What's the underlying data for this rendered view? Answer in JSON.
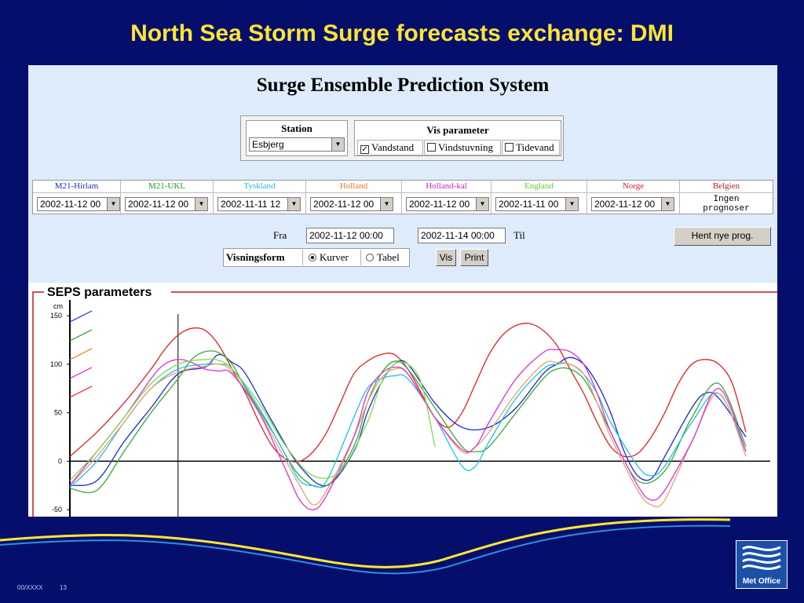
{
  "slide": {
    "title": "North Sea Storm Surge forecasts exchange: DMI",
    "footer_code": "00/XXXX",
    "page_number": "13",
    "logo_text": "Met Office"
  },
  "app": {
    "title": "Surge Ensemble Prediction System",
    "station": {
      "label": "Station",
      "value": "Esbjerg"
    },
    "vis_parameter": {
      "label": "Vis parameter",
      "options": [
        {
          "label": "Vandstand",
          "checked": true
        },
        {
          "label": "Vindstuvning",
          "checked": false
        },
        {
          "label": "Tidevand",
          "checked": false
        }
      ]
    },
    "models": [
      {
        "name": "M21-Hirlam",
        "color": "#1a2bd0",
        "date": "2002-11-12 00"
      },
      {
        "name": "M21-UKL",
        "color": "#1f9a1f",
        "date": "2002-11-12 00"
      },
      {
        "name": "Tyskland",
        "color": "#1fb9e0",
        "date": "2002-11-11 12"
      },
      {
        "name": "Holland",
        "color": "#e07a1f",
        "date": "2002-11-12 00"
      },
      {
        "name": "Holland-kal",
        "color": "#d01fc8",
        "date": "2002-11-12 00"
      },
      {
        "name": "England",
        "color": "#5ccf2f",
        "date": "2002-11-11 00"
      },
      {
        "name": "Norge",
        "color": "#e01f1f",
        "date": "2002-11-12 00"
      },
      {
        "name": "Belgien",
        "color": "#b02020",
        "note_line1": "Ingen",
        "note_line2": "prognoser"
      }
    ],
    "fra_label": "Fra",
    "fra_value": "2002-11-12 00:00",
    "til_value": "2002-11-14 00:00",
    "til_label": "Til",
    "hent_button": "Hent nye prog.",
    "visningsform": {
      "label": "Visningsform",
      "options": [
        {
          "label": "Kurver",
          "selected": true
        },
        {
          "label": "Tabel",
          "selected": false
        }
      ]
    },
    "vis_button": "Vis",
    "print_button": "Print"
  },
  "chart_data": {
    "type": "line",
    "title": "SEPS parameters",
    "ylabel": "cm",
    "ylim": [
      -55,
      155
    ],
    "yticks": [
      150,
      100,
      50,
      0,
      -50
    ],
    "series": [
      {
        "color": "#e02020",
        "x": [
          0,
          4,
          8,
          12,
          14,
          16,
          18,
          20,
          22,
          24,
          26,
          28,
          30,
          32,
          34,
          36,
          38,
          40,
          42,
          44,
          46,
          48,
          50,
          52,
          54,
          56,
          58,
          60,
          62,
          64,
          66,
          68,
          70,
          72,
          74,
          76,
          78,
          80,
          82,
          84,
          86,
          88,
          90,
          92,
          94,
          96,
          98,
          100
        ],
        "values": [
          5,
          30,
          60,
          95,
          115,
          130,
          137,
          135,
          120,
          95,
          70,
          40,
          15,
          2,
          0,
          10,
          30,
          60,
          90,
          103,
          110,
          110,
          95,
          70,
          45,
          35,
          50,
          80,
          110,
          130,
          140,
          142,
          135,
          120,
          95,
          70,
          40,
          15,
          5,
          8,
          25,
          50,
          80,
          100,
          105,
          100,
          80,
          30
        ]
      },
      {
        "color": "#1a2bd0",
        "x": [
          0,
          4,
          8,
          12,
          16,
          20,
          22,
          24,
          26,
          30,
          34,
          38,
          42,
          44,
          46,
          48,
          50,
          54,
          58,
          62,
          66,
          70,
          72,
          74,
          76,
          78,
          80,
          82,
          84,
          86,
          88,
          92,
          94,
          96,
          100
        ],
        "values": [
          -25,
          -20,
          20,
          55,
          90,
          97,
          110,
          102,
          90,
          40,
          -5,
          -25,
          10,
          50,
          80,
          100,
          100,
          60,
          35,
          35,
          55,
          90,
          100,
          107,
          100,
          80,
          50,
          10,
          -15,
          -18,
          5,
          55,
          70,
          65,
          25
        ]
      },
      {
        "color": "#38a838",
        "x": [
          0,
          4,
          8,
          12,
          16,
          18,
          20,
          22,
          24,
          26,
          30,
          34,
          38,
          42,
          44,
          46,
          48,
          50,
          54,
          58,
          60,
          62,
          66,
          70,
          72,
          74,
          76,
          78,
          80,
          84,
          88,
          92,
          96,
          100
        ],
        "values": [
          -28,
          -30,
          10,
          50,
          85,
          105,
          113,
          112,
          100,
          75,
          30,
          -15,
          -25,
          15,
          60,
          90,
          103,
          95,
          55,
          15,
          10,
          15,
          50,
          85,
          95,
          95,
          85,
          60,
          30,
          -20,
          -10,
          45,
          80,
          15
        ]
      },
      {
        "color": "#20c0e8",
        "x": [
          0,
          4,
          8,
          12,
          16,
          20,
          22,
          24,
          28,
          32,
          34,
          36,
          38,
          42,
          44,
          46,
          48,
          50,
          54,
          58,
          60,
          62,
          66,
          70,
          72,
          74,
          76,
          78,
          80,
          84,
          86,
          88,
          92,
          96,
          100
        ],
        "values": [
          -27,
          0,
          40,
          75,
          95,
          100,
          100,
          95,
          55,
          5,
          -20,
          -25,
          -20,
          45,
          75,
          85,
          88,
          85,
          45,
          -5,
          -5,
          20,
          65,
          95,
          100,
          100,
          90,
          70,
          40,
          -5,
          -15,
          -5,
          40,
          70,
          10
        ]
      },
      {
        "color": "#e8a070",
        "x": [
          0,
          4,
          8,
          12,
          16,
          20,
          22,
          24,
          28,
          32,
          34,
          36,
          38,
          42,
          44,
          46,
          48,
          50,
          54,
          58,
          60,
          62,
          66,
          70,
          72,
          74,
          76,
          78,
          80,
          84,
          86,
          88,
          92,
          96,
          100
        ],
        "values": [
          -25,
          5,
          40,
          75,
          92,
          98,
          100,
          92,
          50,
          0,
          -25,
          -45,
          -30,
          25,
          60,
          85,
          95,
          90,
          45,
          10,
          15,
          30,
          70,
          100,
          102,
          100,
          90,
          60,
          25,
          -30,
          -45,
          -40,
          20,
          70,
          5
        ]
      },
      {
        "color": "#e030d0",
        "x": [
          0,
          4,
          8,
          12,
          14,
          16,
          18,
          20,
          22,
          24,
          28,
          32,
          34,
          36,
          38,
          42,
          44,
          46,
          48,
          50,
          54,
          58,
          60,
          62,
          66,
          70,
          72,
          74,
          76,
          78,
          80,
          84,
          86,
          88,
          92,
          96,
          100
        ],
        "values": [
          -25,
          10,
          45,
          85,
          100,
          105,
          102,
          95,
          93,
          90,
          50,
          -10,
          -40,
          -50,
          -35,
          25,
          70,
          90,
          97,
          90,
          45,
          12,
          15,
          40,
          85,
          112,
          115,
          113,
          100,
          70,
          30,
          -25,
          -40,
          -30,
          20,
          75,
          10
        ]
      },
      {
        "color": "#7ddc4a",
        "x": [
          0,
          4,
          8,
          12,
          16,
          20,
          22,
          24,
          28,
          32,
          36,
          40,
          44,
          46,
          48,
          50,
          52,
          54
        ],
        "values": [
          -20,
          10,
          45,
          80,
          100,
          105,
          104,
          95,
          60,
          15,
          -15,
          -10,
          40,
          80,
          100,
          100,
          80,
          15
        ]
      }
    ],
    "legend_stub_colors": [
      "#1a2bd0",
      "#1f9a1f",
      "#e07a1f",
      "#d01fc8",
      "#e01f1f"
    ],
    "cursor_x": 16
  }
}
